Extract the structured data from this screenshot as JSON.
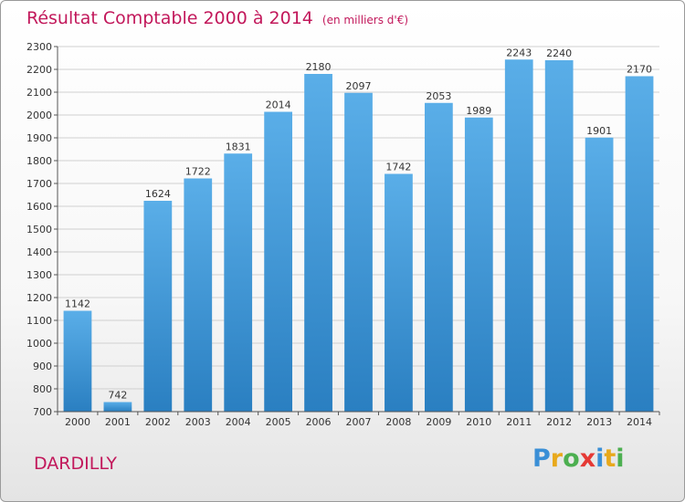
{
  "title": {
    "main": "Résultat Comptable 2000 à 2014",
    "unit": "(en milliers d'€)"
  },
  "commune": "DARDILLY",
  "logo": {
    "text": "Proxiti",
    "letters": [
      {
        "char": "P",
        "color": "#3a8fd6"
      },
      {
        "char": "r",
        "color": "#e8a91c"
      },
      {
        "char": "o",
        "color": "#4caf50"
      },
      {
        "char": "x",
        "color": "#e53935"
      },
      {
        "char": "i",
        "color": "#3a8fd6"
      },
      {
        "char": "t",
        "color": "#e8a91c"
      },
      {
        "char": "i",
        "color": "#4caf50"
      }
    ]
  },
  "colors": {
    "title": "#c2185b",
    "bar_top": "#5aaee8",
    "bar_bottom": "#2a7fc1",
    "grid": "#d0d0d0"
  },
  "chart_data": {
    "type": "bar",
    "categories": [
      "2000",
      "2001",
      "2002",
      "2003",
      "2004",
      "2005",
      "2006",
      "2007",
      "2008",
      "2009",
      "2010",
      "2011",
      "2012",
      "2013",
      "2014"
    ],
    "values": [
      1142,
      742,
      1624,
      1722,
      1831,
      2014,
      2180,
      2097,
      1742,
      2053,
      1989,
      2243,
      2240,
      1901,
      2170
    ],
    "title": "Résultat Comptable 2000 à 2014",
    "ylim": [
      700,
      2300
    ],
    "yticks": [
      700,
      800,
      900,
      1000,
      1100,
      1200,
      1300,
      1400,
      1500,
      1600,
      1700,
      1800,
      1900,
      2000,
      2100,
      2200,
      2300
    ],
    "grid": true,
    "data_labels": true
  }
}
